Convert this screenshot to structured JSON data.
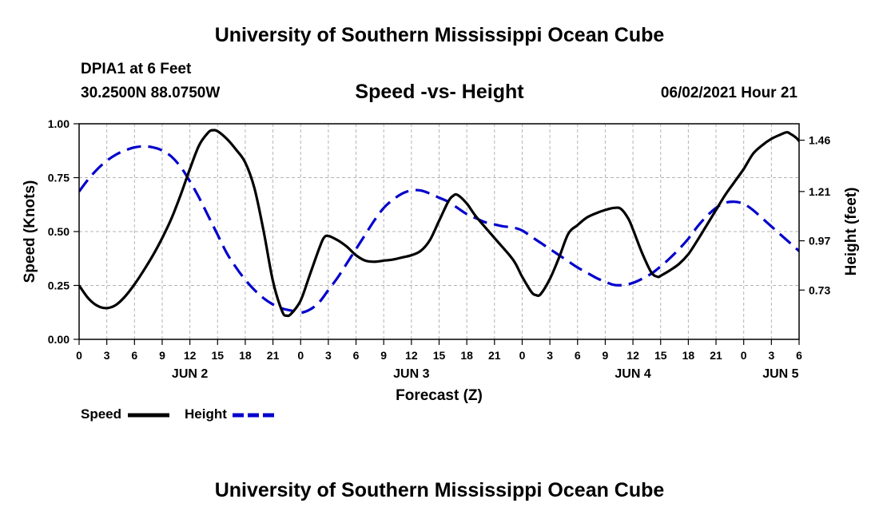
{
  "header": {
    "title_top": "University of Southern Mississippi Ocean Cube",
    "station": "DPIA1 at 6 Feet",
    "coords": "30.2500N  88.0750W",
    "subtitle": "Speed -vs- Height",
    "datetime": "06/02/2021 Hour 21",
    "title_bottom": "University of Southern Mississippi Ocean Cube"
  },
  "chart_data": {
    "type": "line",
    "title": "Speed -vs- Height",
    "xlabel": "Forecast (Z)",
    "ylabel_left": "Speed (Knots)",
    "ylabel_right": "Height (feet)",
    "x_unit": "forecast hours from 06/02 00Z",
    "xlim": [
      0,
      78
    ],
    "ylim_left": [
      0,
      1
    ],
    "ylim_right": [
      0.49,
      1.54
    ],
    "x_ticks": [
      {
        "h": 0,
        "label": "0"
      },
      {
        "h": 3,
        "label": "3"
      },
      {
        "h": 6,
        "label": "6"
      },
      {
        "h": 9,
        "label": "9"
      },
      {
        "h": 12,
        "label": "12"
      },
      {
        "h": 15,
        "label": "15"
      },
      {
        "h": 18,
        "label": "18"
      },
      {
        "h": 21,
        "label": "21"
      },
      {
        "h": 24,
        "label": "0"
      },
      {
        "h": 27,
        "label": "3"
      },
      {
        "h": 30,
        "label": "6"
      },
      {
        "h": 33,
        "label": "9"
      },
      {
        "h": 36,
        "label": "12"
      },
      {
        "h": 39,
        "label": "15"
      },
      {
        "h": 42,
        "label": "18"
      },
      {
        "h": 45,
        "label": "21"
      },
      {
        "h": 48,
        "label": "0"
      },
      {
        "h": 51,
        "label": "3"
      },
      {
        "h": 54,
        "label": "6"
      },
      {
        "h": 57,
        "label": "9"
      },
      {
        "h": 60,
        "label": "12"
      },
      {
        "h": 63,
        "label": "15"
      },
      {
        "h": 66,
        "label": "18"
      },
      {
        "h": 69,
        "label": "21"
      },
      {
        "h": 72,
        "label": "0"
      },
      {
        "h": 75,
        "label": "3"
      },
      {
        "h": 78,
        "label": "6"
      }
    ],
    "day_labels": [
      {
        "h": 12,
        "label": "JUN 2"
      },
      {
        "h": 36,
        "label": "JUN 3"
      },
      {
        "h": 60,
        "label": "JUN 4"
      },
      {
        "h": 76,
        "label": "JUN 5"
      }
    ],
    "y_ticks_left": [
      {
        "v": 0.0,
        "label": "0.00"
      },
      {
        "v": 0.25,
        "label": "0.25"
      },
      {
        "v": 0.5,
        "label": "0.50"
      },
      {
        "v": 0.75,
        "label": "0.75"
      },
      {
        "v": 1.0,
        "label": "1.00"
      }
    ],
    "y_ticks_right": [
      {
        "v": 0.73,
        "label": "0.73"
      },
      {
        "v": 0.97,
        "label": "0.97"
      },
      {
        "v": 1.21,
        "label": "1.21"
      },
      {
        "v": 1.46,
        "label": "1.46"
      }
    ],
    "grid": true,
    "series": [
      {
        "name": "Speed",
        "axis": "left",
        "color": "#000000",
        "dash": "solid",
        "points": [
          [
            0,
            0.25
          ],
          [
            1,
            0.19
          ],
          [
            2,
            0.155
          ],
          [
            3,
            0.145
          ],
          [
            4,
            0.16
          ],
          [
            5,
            0.2
          ],
          [
            6,
            0.255
          ],
          [
            7,
            0.32
          ],
          [
            8,
            0.39
          ],
          [
            9,
            0.47
          ],
          [
            10,
            0.56
          ],
          [
            11,
            0.67
          ],
          [
            12,
            0.79
          ],
          [
            13,
            0.9
          ],
          [
            14,
            0.96
          ],
          [
            14.5,
            0.97
          ],
          [
            15,
            0.965
          ],
          [
            16,
            0.93
          ],
          [
            17,
            0.88
          ],
          [
            18,
            0.82
          ],
          [
            19,
            0.7
          ],
          [
            20,
            0.5
          ],
          [
            21,
            0.27
          ],
          [
            22,
            0.13
          ],
          [
            22.5,
            0.11
          ],
          [
            23,
            0.12
          ],
          [
            24,
            0.18
          ],
          [
            25,
            0.3
          ],
          [
            26,
            0.42
          ],
          [
            26.5,
            0.47
          ],
          [
            27,
            0.48
          ],
          [
            28,
            0.46
          ],
          [
            29,
            0.43
          ],
          [
            30,
            0.39
          ],
          [
            31,
            0.365
          ],
          [
            32,
            0.36
          ],
          [
            33,
            0.365
          ],
          [
            34,
            0.37
          ],
          [
            35,
            0.38
          ],
          [
            36,
            0.39
          ],
          [
            37,
            0.41
          ],
          [
            38,
            0.46
          ],
          [
            39,
            0.55
          ],
          [
            40,
            0.64
          ],
          [
            40.5,
            0.665
          ],
          [
            41,
            0.67
          ],
          [
            42,
            0.63
          ],
          [
            43,
            0.57
          ],
          [
            45,
            0.47
          ],
          [
            47,
            0.37
          ],
          [
            48,
            0.29
          ],
          [
            49,
            0.22
          ],
          [
            49.5,
            0.205
          ],
          [
            50,
            0.21
          ],
          [
            51,
            0.28
          ],
          [
            52,
            0.38
          ],
          [
            53,
            0.49
          ],
          [
            54,
            0.53
          ],
          [
            55,
            0.565
          ],
          [
            56,
            0.585
          ],
          [
            57,
            0.6
          ],
          [
            58,
            0.61
          ],
          [
            58.7,
            0.605
          ],
          [
            59.5,
            0.56
          ],
          [
            60,
            0.51
          ],
          [
            61,
            0.4
          ],
          [
            62,
            0.31
          ],
          [
            62.7,
            0.29
          ],
          [
            63,
            0.295
          ],
          [
            64,
            0.32
          ],
          [
            65,
            0.35
          ],
          [
            66,
            0.395
          ],
          [
            67,
            0.46
          ],
          [
            68,
            0.53
          ],
          [
            69,
            0.6
          ],
          [
            70,
            0.67
          ],
          [
            71,
            0.73
          ],
          [
            72,
            0.79
          ],
          [
            73,
            0.86
          ],
          [
            74,
            0.9
          ],
          [
            75,
            0.93
          ],
          [
            76,
            0.95
          ],
          [
            76.6,
            0.96
          ],
          [
            77,
            0.955
          ],
          [
            78,
            0.92
          ],
          [
            79,
            0.83
          ],
          [
            80,
            0.68
          ],
          [
            81,
            0.5
          ]
        ]
      },
      {
        "name": "Height",
        "axis": "right",
        "color": "#0000cc",
        "dash": "dashed",
        "points": [
          [
            0,
            1.21
          ],
          [
            1,
            1.27
          ],
          [
            2,
            1.32
          ],
          [
            3,
            1.36
          ],
          [
            4,
            1.39
          ],
          [
            5,
            1.41
          ],
          [
            6,
            1.425
          ],
          [
            7,
            1.43
          ],
          [
            8,
            1.425
          ],
          [
            9,
            1.41
          ],
          [
            10,
            1.38
          ],
          [
            11,
            1.33
          ],
          [
            12,
            1.26
          ],
          [
            13,
            1.18
          ],
          [
            14,
            1.09
          ],
          [
            15,
            1.0
          ],
          [
            16,
            0.91
          ],
          [
            17,
            0.84
          ],
          [
            18,
            0.78
          ],
          [
            19,
            0.73
          ],
          [
            20,
            0.69
          ],
          [
            21,
            0.66
          ],
          [
            22,
            0.64
          ],
          [
            23,
            0.63
          ],
          [
            24,
            0.62
          ],
          [
            25,
            0.635
          ],
          [
            26,
            0.67
          ],
          [
            27,
            0.73
          ],
          [
            28,
            0.79
          ],
          [
            29,
            0.86
          ],
          [
            30,
            0.93
          ],
          [
            31,
            1.0
          ],
          [
            32,
            1.07
          ],
          [
            33,
            1.13
          ],
          [
            34,
            1.17
          ],
          [
            35,
            1.2
          ],
          [
            36,
            1.215
          ],
          [
            37,
            1.215
          ],
          [
            38,
            1.2
          ],
          [
            39,
            1.18
          ],
          [
            40,
            1.16
          ],
          [
            41,
            1.13
          ],
          [
            42,
            1.1
          ],
          [
            43,
            1.08
          ],
          [
            44,
            1.06
          ],
          [
            45,
            1.05
          ],
          [
            46,
            1.04
          ],
          [
            47,
            1.035
          ],
          [
            48,
            1.02
          ],
          [
            49,
            0.99
          ],
          [
            50,
            0.96
          ],
          [
            51,
            0.93
          ],
          [
            52,
            0.9
          ],
          [
            53,
            0.87
          ],
          [
            54,
            0.84
          ],
          [
            55,
            0.815
          ],
          [
            56,
            0.79
          ],
          [
            57,
            0.77
          ],
          [
            58,
            0.755
          ],
          [
            59,
            0.755
          ],
          [
            60,
            0.765
          ],
          [
            61,
            0.785
          ],
          [
            62,
            0.81
          ],
          [
            63,
            0.845
          ],
          [
            64,
            0.885
          ],
          [
            65,
            0.93
          ],
          [
            66,
            0.98
          ],
          [
            67,
            1.04
          ],
          [
            68,
            1.09
          ],
          [
            69,
            1.13
          ],
          [
            70,
            1.155
          ],
          [
            71,
            1.16
          ],
          [
            72,
            1.15
          ],
          [
            73,
            1.12
          ],
          [
            74,
            1.08
          ],
          [
            75,
            1.04
          ],
          [
            76,
            1.0
          ],
          [
            77,
            0.96
          ],
          [
            78,
            0.92
          ],
          [
            79,
            0.88
          ],
          [
            80,
            0.85
          ],
          [
            81,
            0.82
          ]
        ]
      }
    ],
    "legend": [
      {
        "label": "Speed",
        "color": "#000000",
        "dash": "solid"
      },
      {
        "label": "Height",
        "color": "#0000cc",
        "dash": "dashed"
      }
    ]
  }
}
